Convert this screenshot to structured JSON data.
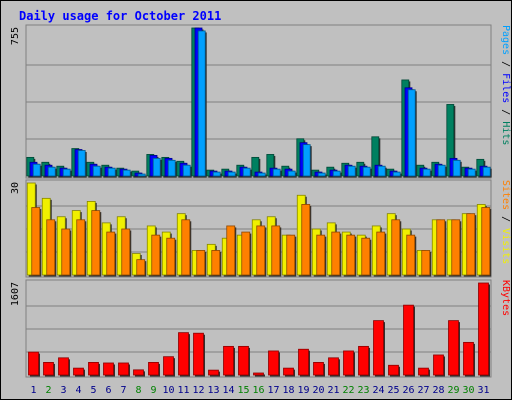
{
  "chart_data": {
    "type": "bar",
    "title": "Daily usage for October 2011",
    "categories": [
      "1",
      "2",
      "3",
      "4",
      "5",
      "6",
      "7",
      "8",
      "9",
      "10",
      "11",
      "12",
      "13",
      "14",
      "15",
      "16",
      "17",
      "18",
      "19",
      "20",
      "21",
      "22",
      "23",
      "24",
      "25",
      "26",
      "27",
      "28",
      "29",
      "30",
      "31"
    ],
    "weekend_days": [
      "2",
      "8",
      "9",
      "15",
      "16",
      "22",
      "23",
      "29",
      "30"
    ],
    "panels": [
      {
        "id": "hits-files-pages",
        "max_label": "755",
        "ymax": 755,
        "right_label_parts": [
          {
            "text": "Pages",
            "color": "#00a0ff"
          },
          {
            "text": " / ",
            "color": "#000000"
          },
          {
            "text": "Files",
            "color": "#0000ff"
          },
          {
            "text": " / ",
            "color": "#000000"
          },
          {
            "text": "Hits",
            "color": "#008060"
          }
        ],
        "series": [
          {
            "name": "Hits",
            "color": "#008060",
            "values": [
              95,
              70,
              50,
              140,
              70,
              55,
              40,
              25,
              110,
              95,
              75,
              755,
              30,
              35,
              55,
              95,
              110,
              50,
              190,
              30,
              45,
              65,
              70,
              200,
              35,
              490,
              55,
              70,
              365,
              45,
              85
            ]
          },
          {
            "name": "Files",
            "color": "#0000ff",
            "values": [
              70,
              55,
              40,
              135,
              60,
              45,
              35,
              15,
              105,
              90,
              65,
              755,
              25,
              25,
              45,
              20,
              40,
              35,
              170,
              20,
              30,
              55,
              50,
              55,
              25,
              450,
              40,
              60,
              90,
              40,
              50
            ]
          },
          {
            "name": "Pages",
            "color": "#00a0ff",
            "values": [
              60,
              45,
              35,
              130,
              50,
              40,
              30,
              10,
              90,
              80,
              55,
              740,
              20,
              20,
              40,
              15,
              35,
              25,
              160,
              15,
              25,
              50,
              45,
              50,
              20,
              440,
              35,
              55,
              80,
              35,
              45
            ]
          }
        ]
      },
      {
        "id": "visits-sites",
        "max_label": "30",
        "ymax": 30,
        "right_label_parts": [
          {
            "text": "Sites",
            "color": "#ff8000"
          },
          {
            "text": " / ",
            "color": "#000000"
          },
          {
            "text": "Visits",
            "color": "#f0f000"
          }
        ],
        "series": [
          {
            "name": "Visits",
            "color": "#f0f000",
            "values": [
              30,
              25,
              19,
              21,
              24,
              17,
              19,
              7,
              16,
              14,
              20,
              8,
              10,
              12,
              13,
              18,
              19,
              13,
              26,
              15,
              17,
              14,
              13,
              16,
              20,
              15,
              8,
              18,
              18,
              20,
              23
            ]
          },
          {
            "name": "Sites",
            "color": "#ff8000",
            "values": [
              22,
              18,
              15,
              18,
              21,
              14,
              15,
              5,
              13,
              12,
              18,
              8,
              8,
              16,
              14,
              16,
              16,
              13,
              23,
              13,
              14,
              13,
              12,
              14,
              18,
              13,
              8,
              18,
              18,
              20,
              22
            ]
          }
        ]
      },
      {
        "id": "kbytes",
        "max_label": "1607",
        "ymax": 1607,
        "right_label_parts": [
          {
            "text": "KBytes",
            "color": "#ff0000"
          }
        ],
        "series": [
          {
            "name": "KBytes",
            "color": "#ff0000",
            "values": [
              400,
              220,
              300,
              120,
              220,
              210,
              210,
              90,
              220,
              320,
              740,
              730,
              85,
              500,
              500,
              35,
              420,
              120,
              450,
              220,
              300,
              420,
              500,
              950,
              170,
              1220,
              120,
              350,
              950,
              570,
              1607
            ]
          }
        ]
      }
    ]
  },
  "colors": {
    "background": "#ffffff",
    "frame": "#c0c0c0",
    "plot": "#c0c0c0",
    "title_text": "#0000ff",
    "weekday_label": "#00008b",
    "weekend_label": "#008000"
  }
}
